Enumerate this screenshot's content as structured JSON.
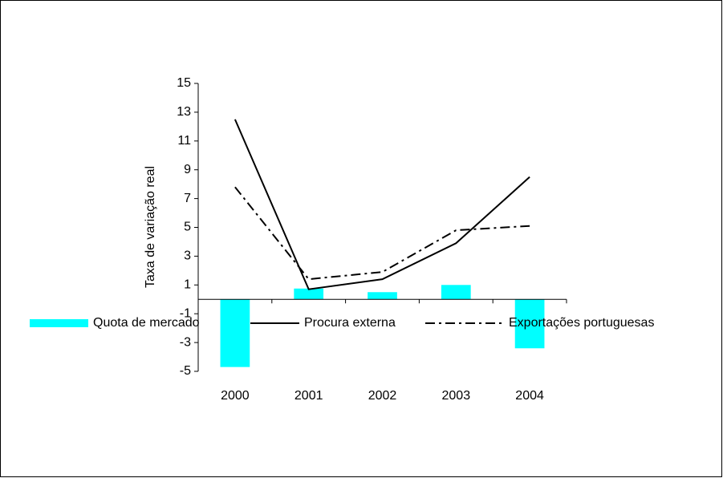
{
  "chart_data": {
    "type": "combo",
    "y_label": "Taxa de variação real",
    "categories": [
      "2000",
      "2001",
      "2002",
      "2003",
      "2004"
    ],
    "ylim": [
      -5,
      15
    ],
    "yticks": [
      -5,
      -3,
      -1,
      1,
      3,
      5,
      7,
      9,
      11,
      13,
      15
    ],
    "grid": false,
    "legend": "bottom",
    "series": [
      {
        "name": "Quota de mercado",
        "type": "bar",
        "color": "#00ffff",
        "values": [
          -4.7,
          0.75,
          0.5,
          1.0,
          -3.4
        ]
      },
      {
        "name": "Procura externa",
        "type": "line",
        "color": "#000000",
        "line_style": "solid",
        "values": [
          12.5,
          0.7,
          1.4,
          3.9,
          8.5
        ]
      },
      {
        "name": "Exportações portuguesas",
        "type": "line",
        "color": "#000000",
        "line_style": "dashdot",
        "values": [
          7.8,
          1.4,
          1.9,
          4.8,
          5.1
        ]
      }
    ]
  }
}
